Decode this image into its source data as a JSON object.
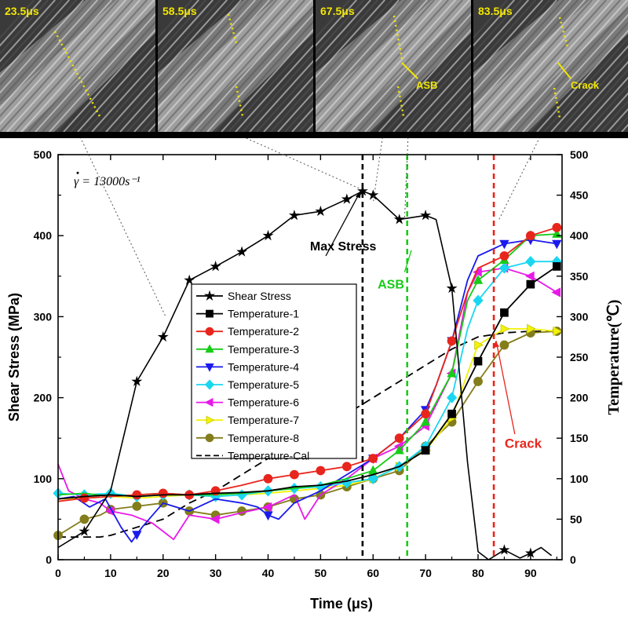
{
  "frames": [
    {
      "time_label": "23.5μs",
      "annotation": ""
    },
    {
      "time_label": "58.5μs",
      "annotation": ""
    },
    {
      "time_label": "67.5μs",
      "annotation": "ASB"
    },
    {
      "time_label": "83.5μs",
      "annotation": "Crack"
    }
  ],
  "chart_data": {
    "type": "line",
    "xlabel": "Time (μs)",
    "ylabel_left": "Shear Stress (MPa)",
    "ylabel_right": "Temperature(℃)",
    "xlim": [
      0,
      96
    ],
    "ylim_left": [
      0,
      500
    ],
    "ylim_right": [
      0,
      500
    ],
    "x_ticks": [
      0,
      10,
      20,
      30,
      40,
      50,
      60,
      70,
      80,
      90
    ],
    "y_ticks": [
      0,
      100,
      200,
      300,
      400,
      500
    ],
    "y_ticks_right": [
      0,
      50,
      100,
      150,
      200,
      250,
      300,
      350,
      400,
      450,
      500
    ],
    "strain_rate_label": "γ = 13000s⁻¹",
    "legend_position": "center-left",
    "series": [
      {
        "name": "Shear Stress",
        "color": "#000000",
        "marker": "star",
        "axis": "left",
        "dash": "",
        "x": [
          0,
          5,
          10,
          15,
          20,
          25,
          30,
          35,
          40,
          45,
          50,
          55,
          58,
          60,
          65,
          70,
          72,
          75,
          78,
          80,
          82,
          85,
          88,
          90,
          92,
          94
        ],
        "y": [
          15,
          35,
          85,
          220,
          275,
          345,
          362,
          380,
          400,
          425,
          430,
          445,
          455,
          450,
          420,
          425,
          420,
          335,
          120,
          10,
          0,
          12,
          2,
          8,
          15,
          5
        ],
        "markers": [
          5,
          15,
          20,
          25,
          30,
          35,
          40,
          45,
          50,
          55,
          58,
          60,
          65,
          70,
          75,
          85,
          90
        ]
      },
      {
        "name": "Temperature-1",
        "color": "#000000",
        "marker": "square",
        "axis": "right",
        "dash": "",
        "x": [
          0,
          5,
          10,
          15,
          20,
          25,
          30,
          35,
          40,
          45,
          50,
          55,
          60,
          65,
          70,
          75,
          80,
          85,
          90,
          95
        ],
        "y": [
          75,
          78,
          80,
          78,
          80,
          80,
          82,
          83,
          85,
          90,
          92,
          97,
          105,
          115,
          135,
          180,
          245,
          305,
          340,
          362
        ],
        "markers": [
          70,
          75,
          80,
          85,
          90,
          95
        ]
      },
      {
        "name": "Temperature-2",
        "color": "#e8251c",
        "marker": "circle",
        "axis": "right",
        "dash": "",
        "x": [
          0,
          5,
          10,
          15,
          20,
          25,
          30,
          35,
          40,
          45,
          50,
          55,
          60,
          65,
          70,
          72,
          75,
          78,
          80,
          85,
          90,
          95
        ],
        "y": [
          72,
          76,
          78,
          80,
          82,
          80,
          85,
          92,
          100,
          105,
          110,
          115,
          125,
          150,
          180,
          215,
          270,
          330,
          360,
          375,
          400,
          410
        ],
        "markers": [
          5,
          15,
          20,
          25,
          30,
          40,
          45,
          50,
          55,
          60,
          65,
          70,
          75,
          85,
          90,
          95
        ]
      },
      {
        "name": "Temperature-3",
        "color": "#16cc16",
        "marker": "triangle-up",
        "axis": "right",
        "dash": "",
        "x": [
          0,
          5,
          10,
          15,
          20,
          25,
          30,
          35,
          40,
          45,
          50,
          55,
          60,
          65,
          70,
          75,
          78,
          80,
          85,
          90,
          95
        ],
        "y": [
          80,
          82,
          78,
          80,
          82,
          80,
          80,
          82,
          85,
          88,
          92,
          100,
          110,
          135,
          170,
          230,
          320,
          345,
          370,
          400,
          402
        ],
        "markers": [
          60,
          65,
          70,
          75,
          80,
          85,
          90,
          95
        ]
      },
      {
        "name": "Temperature-4",
        "color": "#1a1aee",
        "marker": "triangle-down",
        "axis": "right",
        "dash": "",
        "x": [
          0,
          3,
          6,
          9,
          12,
          14,
          16,
          18,
          20,
          25,
          30,
          35,
          38,
          40,
          42,
          45,
          50,
          55,
          60,
          65,
          70,
          72,
          75,
          78,
          80,
          85,
          90,
          95
        ],
        "y": [
          75,
          78,
          65,
          75,
          40,
          22,
          40,
          55,
          70,
          60,
          75,
          70,
          65,
          55,
          50,
          70,
          85,
          105,
          125,
          150,
          185,
          215,
          270,
          345,
          375,
          390,
          395,
          390
        ],
        "markers": [
          15,
          40,
          60,
          70,
          75,
          85,
          90,
          95
        ]
      },
      {
        "name": "Temperature-5",
        "color": "#19d7f0",
        "marker": "diamond",
        "axis": "right",
        "dash": "",
        "x": [
          0,
          5,
          10,
          15,
          20,
          25,
          30,
          35,
          40,
          45,
          50,
          55,
          60,
          65,
          70,
          75,
          78,
          80,
          85,
          90,
          95
        ],
        "y": [
          82,
          80,
          82,
          78,
          80,
          80,
          78,
          80,
          85,
          88,
          90,
          95,
          100,
          115,
          140,
          200,
          285,
          320,
          360,
          368,
          368
        ],
        "markers": [
          0,
          5,
          10,
          15,
          20,
          25,
          30,
          35,
          40,
          45,
          50,
          55,
          60,
          65,
          70,
          75,
          80,
          85,
          90,
          95
        ]
      },
      {
        "name": "Temperature-6",
        "color": "#e81ae8",
        "marker": "triangle-left",
        "axis": "right",
        "dash": "",
        "x": [
          0,
          2,
          5,
          8,
          10,
          14,
          18,
          20,
          22,
          25,
          30,
          35,
          40,
          45,
          47,
          50,
          55,
          60,
          65,
          70,
          75,
          78,
          80,
          85,
          90,
          95
        ],
        "y": [
          118,
          85,
          75,
          70,
          60,
          55,
          45,
          35,
          25,
          55,
          50,
          58,
          65,
          80,
          50,
          80,
          100,
          125,
          140,
          165,
          230,
          330,
          355,
          360,
          350,
          330
        ],
        "markers": [
          10,
          30,
          40,
          60,
          65,
          70,
          75,
          80,
          85,
          90,
          95
        ]
      },
      {
        "name": "Temperature-7",
        "color": "#f2f20a",
        "marker": "triangle-right",
        "axis": "right",
        "dash": "",
        "x": [
          0,
          5,
          10,
          15,
          20,
          25,
          30,
          35,
          40,
          45,
          50,
          55,
          60,
          65,
          70,
          75,
          78,
          80,
          85,
          90,
          95
        ],
        "y": [
          75,
          76,
          78,
          76,
          78,
          80,
          78,
          80,
          82,
          85,
          88,
          92,
          100,
          115,
          135,
          175,
          230,
          265,
          285,
          285,
          282
        ],
        "markers": [
          60,
          65,
          70,
          75,
          80,
          85,
          90,
          95
        ]
      },
      {
        "name": "Temperature-8",
        "color": "#837d1a",
        "marker": "circle",
        "axis": "right",
        "dash": "",
        "x": [
          0,
          5,
          8,
          10,
          15,
          20,
          25,
          30,
          35,
          40,
          45,
          50,
          55,
          60,
          65,
          70,
          75,
          80,
          85,
          90,
          95
        ],
        "y": [
          30,
          50,
          55,
          62,
          66,
          70,
          60,
          55,
          60,
          65,
          75,
          80,
          90,
          100,
          110,
          140,
          170,
          220,
          265,
          280,
          282
        ],
        "markers": [
          0,
          5,
          10,
          15,
          20,
          25,
          30,
          35,
          40,
          45,
          50,
          55,
          60,
          65,
          70,
          75,
          80,
          85,
          90,
          95
        ]
      },
      {
        "name": "Temperature-Cal",
        "color": "#000000",
        "marker": "none",
        "axis": "right",
        "dash": "10,6",
        "x": [
          0,
          4,
          8,
          10,
          15,
          20,
          25,
          30,
          35,
          40,
          45,
          50,
          55,
          60,
          65,
          70,
          75,
          80,
          85,
          90,
          95
        ],
        "y": [
          28,
          28,
          28,
          30,
          40,
          50,
          70,
          85,
          105,
          125,
          140,
          160,
          180,
          200,
          220,
          240,
          260,
          275,
          280,
          282,
          282
        ],
        "markers": []
      }
    ],
    "vlines": [
      {
        "x": 58,
        "color": "#000000",
        "label": "Max Stress"
      },
      {
        "x": 66.5,
        "color": "#16cc16",
        "label": "ASB"
      },
      {
        "x": 83,
        "color": "#e8251c",
        "label": "Crack"
      }
    ]
  }
}
